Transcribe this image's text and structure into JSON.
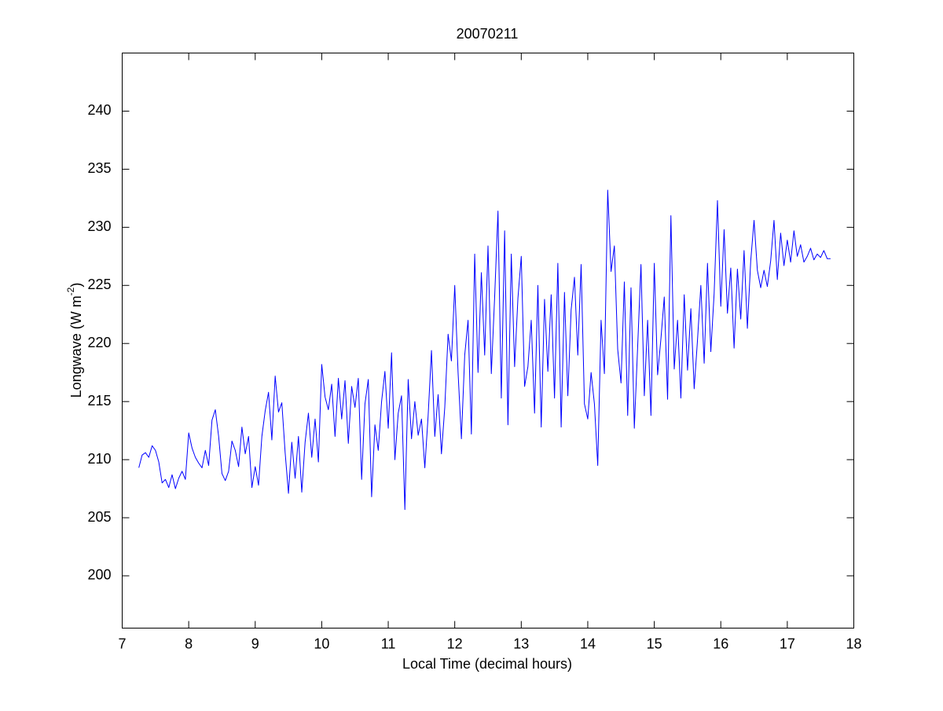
{
  "chart_data": {
    "type": "line",
    "title": "20070211",
    "x_label": "Local Time (decimal hours)",
    "y_label": [
      "Longwave (W m",
      "-2",
      ")"
    ],
    "xlim": [
      7,
      18
    ],
    "xticks": [
      7,
      8,
      9,
      10,
      11,
      12,
      13,
      14,
      15,
      16,
      17,
      18
    ],
    "ylim": [
      195.5,
      245
    ],
    "yticks": [
      200,
      205,
      210,
      215,
      220,
      225,
      230,
      235,
      240
    ],
    "grid": false,
    "series": [
      {
        "color": "#0000ff",
        "x": [
          7.25,
          7.3,
          7.35,
          7.4,
          7.45,
          7.5,
          7.55,
          7.6,
          7.65,
          7.7,
          7.75,
          7.8,
          7.85,
          7.9,
          7.95,
          8,
          8.05,
          8.1,
          8.15,
          8.2,
          8.25,
          8.3,
          8.35,
          8.4,
          8.45,
          8.5,
          8.55,
          8.6,
          8.65,
          8.7,
          8.75,
          8.8,
          8.85,
          8.9,
          8.95,
          9,
          9.05,
          9.1,
          9.15,
          9.2,
          9.25,
          9.3,
          9.35,
          9.4,
          9.45,
          9.5,
          9.55,
          9.6,
          9.65,
          9.7,
          9.75,
          9.8,
          9.85,
          9.9,
          9.95,
          10,
          10.05,
          10.1,
          10.15,
          10.2,
          10.25,
          10.3,
          10.35,
          10.4,
          10.45,
          10.5,
          10.55,
          10.6,
          10.65,
          10.7,
          10.75,
          10.8,
          10.85,
          10.9,
          10.95,
          11,
          11.05,
          11.1,
          11.15,
          11.2,
          11.25,
          11.3,
          11.35,
          11.4,
          11.45,
          11.5,
          11.55,
          11.6,
          11.65,
          11.7,
          11.75,
          11.8,
          11.85,
          11.9,
          11.95,
          12,
          12.05,
          12.1,
          12.15,
          12.2,
          12.25,
          12.3,
          12.35,
          12.4,
          12.45,
          12.5,
          12.55,
          12.6,
          12.65,
          12.7,
          12.75,
          12.8,
          12.85,
          12.9,
          12.95,
          13,
          13.05,
          13.1,
          13.15,
          13.2,
          13.25,
          13.3,
          13.35,
          13.4,
          13.45,
          13.5,
          13.55,
          13.6,
          13.65,
          13.7,
          13.75,
          13.8,
          13.85,
          13.9,
          13.95,
          14,
          14.05,
          14.1,
          14.15,
          14.2,
          14.25,
          14.3,
          14.35,
          14.4,
          14.45,
          14.5,
          14.55,
          14.6,
          14.65,
          14.7,
          14.75,
          14.8,
          14.85,
          14.9,
          14.95,
          15,
          15.05,
          15.1,
          15.15,
          15.2,
          15.25,
          15.3,
          15.35,
          15.4,
          15.45,
          15.5,
          15.55,
          15.6,
          15.65,
          15.7,
          15.75,
          15.8,
          15.85,
          15.9,
          15.95,
          16,
          16.05,
          16.1,
          16.15,
          16.2,
          16.25,
          16.3,
          16.35,
          16.4,
          16.45,
          16.5,
          16.55,
          16.6,
          16.65,
          16.7,
          16.75,
          16.8,
          16.85,
          16.9,
          16.95,
          17,
          17.05,
          17.1,
          17.15,
          17.2,
          17.25,
          17.3,
          17.35,
          17.4,
          17.45,
          17.5,
          17.55,
          17.6,
          17.65
        ],
        "values": [
          209.3,
          210.4,
          210.6,
          210.2,
          211.2,
          210.8,
          209.8,
          208.0,
          208.3,
          207.6,
          208.7,
          207.5,
          208.4,
          209.0,
          208.3,
          212.3,
          211.0,
          210.2,
          209.7,
          209.3,
          210.8,
          209.5,
          213.4,
          214.3,
          212.0,
          208.8,
          208.2,
          209.0,
          211.6,
          210.8,
          209.4,
          212.8,
          210.5,
          212.0,
          207.6,
          209.4,
          207.8,
          212.0,
          214.2,
          215.8,
          211.7,
          217.2,
          214.1,
          214.9,
          210.6,
          207.1,
          211.5,
          208.4,
          212.0,
          207.2,
          211.5,
          214.0,
          210.2,
          213.5,
          209.8,
          218.2,
          215.4,
          214.3,
          216.5,
          212.0,
          217.0,
          213.5,
          216.8,
          211.4,
          216.3,
          214.5,
          217.0,
          208.3,
          214.8,
          216.9,
          206.8,
          213.0,
          210.8,
          215.0,
          217.6,
          212.7,
          219.2,
          210.0,
          214.0,
          215.5,
          205.7,
          216.9,
          211.8,
          215.0,
          212.1,
          213.5,
          209.3,
          213.8,
          219.4,
          212.0,
          215.6,
          210.5,
          214.5,
          220.8,
          218.5,
          225.0,
          217.5,
          211.8,
          219.0,
          222.0,
          212.2,
          227.7,
          217.5,
          226.1,
          219.0,
          228.4,
          217.4,
          224.0,
          231.4,
          215.3,
          229.7,
          213.0,
          227.7,
          218.0,
          223.9,
          227.5,
          216.3,
          218.0,
          222.0,
          214.0,
          225.0,
          212.8,
          223.8,
          217.6,
          224.2,
          215.3,
          226.9,
          212.8,
          224.4,
          215.5,
          222.9,
          225.7,
          219.0,
          226.8,
          214.8,
          213.5,
          217.5,
          214.8,
          209.5,
          222.0,
          217.4,
          233.2,
          226.2,
          228.4,
          219.5,
          216.6,
          225.3,
          213.8,
          224.8,
          212.7,
          219.7,
          226.8,
          215.5,
          222.0,
          213.8,
          226.9,
          217.3,
          220.4,
          224.0,
          215.2,
          231.0,
          217.8,
          222.0,
          215.3,
          224.2,
          217.7,
          223.0,
          216.1,
          220.3,
          225.0,
          218.3,
          226.9,
          219.3,
          224.3,
          232.3,
          223.2,
          229.8,
          222.6,
          226.5,
          219.6,
          226.4,
          222.1,
          228.0,
          221.3,
          227.1,
          230.6,
          226.3,
          224.8,
          226.3,
          224.9,
          227.1,
          230.6,
          225.5,
          229.5,
          226.7,
          228.9,
          227.0,
          229.7,
          227.5,
          228.5,
          227.0,
          227.5,
          228.2,
          227.2,
          227.7,
          227.4,
          228.0,
          227.3,
          227.3
        ]
      }
    ]
  }
}
